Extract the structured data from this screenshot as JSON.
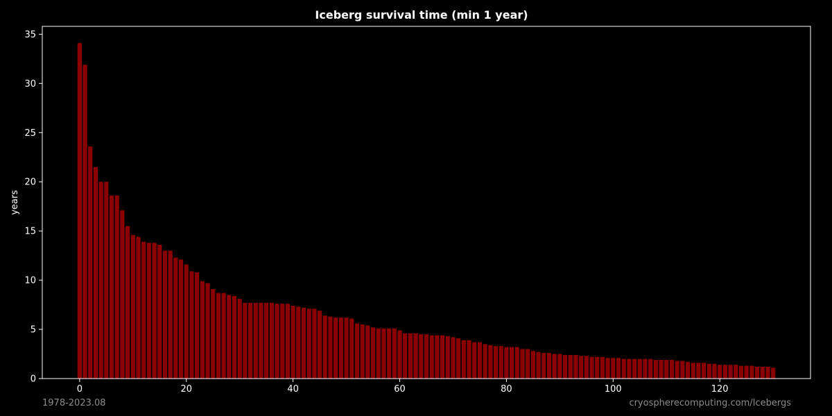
{
  "chart_data": {
    "type": "bar",
    "title": "Iceberg survival time (min 1 year)",
    "xlabel": "",
    "ylabel": "years",
    "xlim": [
      -7,
      137
    ],
    "ylim": [
      0,
      35.8
    ],
    "x_ticks": [
      0,
      20,
      40,
      60,
      80,
      100,
      120
    ],
    "y_ticks": [
      0,
      5,
      10,
      15,
      20,
      25,
      30,
      35
    ],
    "grid": false,
    "bar_color": "#8b0000",
    "x": [
      0,
      1,
      2,
      3,
      4,
      5,
      6,
      7,
      8,
      9,
      10,
      11,
      12,
      13,
      14,
      15,
      16,
      17,
      18,
      19,
      20,
      21,
      22,
      23,
      24,
      25,
      26,
      27,
      28,
      29,
      30,
      31,
      32,
      33,
      34,
      35,
      36,
      37,
      38,
      39,
      40,
      41,
      42,
      43,
      44,
      45,
      46,
      47,
      48,
      49,
      50,
      51,
      52,
      53,
      54,
      55,
      56,
      57,
      58,
      59,
      60,
      61,
      62,
      63,
      64,
      65,
      66,
      67,
      68,
      69,
      70,
      71,
      72,
      73,
      74,
      75,
      76,
      77,
      78,
      79,
      80,
      81,
      82,
      83,
      84,
      85,
      86,
      87,
      88,
      89,
      90,
      91,
      92,
      93,
      94,
      95,
      96,
      97,
      98,
      99,
      100,
      101,
      102,
      103,
      104,
      105,
      106,
      107,
      108,
      109,
      110,
      111,
      112,
      113,
      114,
      115,
      116,
      117,
      118,
      119,
      120,
      121,
      122,
      123,
      124,
      125,
      126,
      127,
      128,
      129,
      130
    ],
    "values": [
      34.1,
      31.9,
      23.6,
      21.5,
      20.0,
      20.0,
      18.6,
      18.6,
      17.1,
      15.5,
      14.6,
      14.4,
      13.9,
      13.8,
      13.8,
      13.6,
      13.0,
      13.0,
      12.3,
      12.1,
      11.6,
      10.9,
      10.8,
      9.9,
      9.7,
      9.1,
      8.7,
      8.7,
      8.5,
      8.4,
      8.1,
      7.7,
      7.7,
      7.7,
      7.7,
      7.7,
      7.7,
      7.6,
      7.6,
      7.6,
      7.4,
      7.3,
      7.2,
      7.1,
      7.1,
      6.9,
      6.4,
      6.3,
      6.2,
      6.2,
      6.2,
      6.1,
      5.6,
      5.5,
      5.4,
      5.2,
      5.1,
      5.1,
      5.1,
      5.1,
      4.9,
      4.6,
      4.6,
      4.6,
      4.5,
      4.5,
      4.4,
      4.4,
      4.4,
      4.3,
      4.2,
      4.1,
      3.9,
      3.9,
      3.7,
      3.7,
      3.5,
      3.4,
      3.3,
      3.3,
      3.2,
      3.2,
      3.2,
      3.0,
      3.0,
      2.8,
      2.7,
      2.6,
      2.6,
      2.5,
      2.5,
      2.4,
      2.4,
      2.4,
      2.3,
      2.3,
      2.2,
      2.2,
      2.2,
      2.1,
      2.1,
      2.1,
      2.0,
      2.0,
      2.0,
      2.0,
      2.0,
      2.0,
      1.9,
      1.9,
      1.9,
      1.9,
      1.8,
      1.8,
      1.7,
      1.6,
      1.6,
      1.6,
      1.5,
      1.5,
      1.4,
      1.4,
      1.4,
      1.4,
      1.3,
      1.3,
      1.3,
      1.2,
      1.2,
      1.2,
      1.1
    ]
  },
  "footer": {
    "left": "1978-2023.08",
    "right": "cryospherecomputing.com/Icebergs"
  },
  "colors": {
    "background": "#000000",
    "foreground": "#ffffff",
    "footer_text": "#8c8c8c"
  }
}
